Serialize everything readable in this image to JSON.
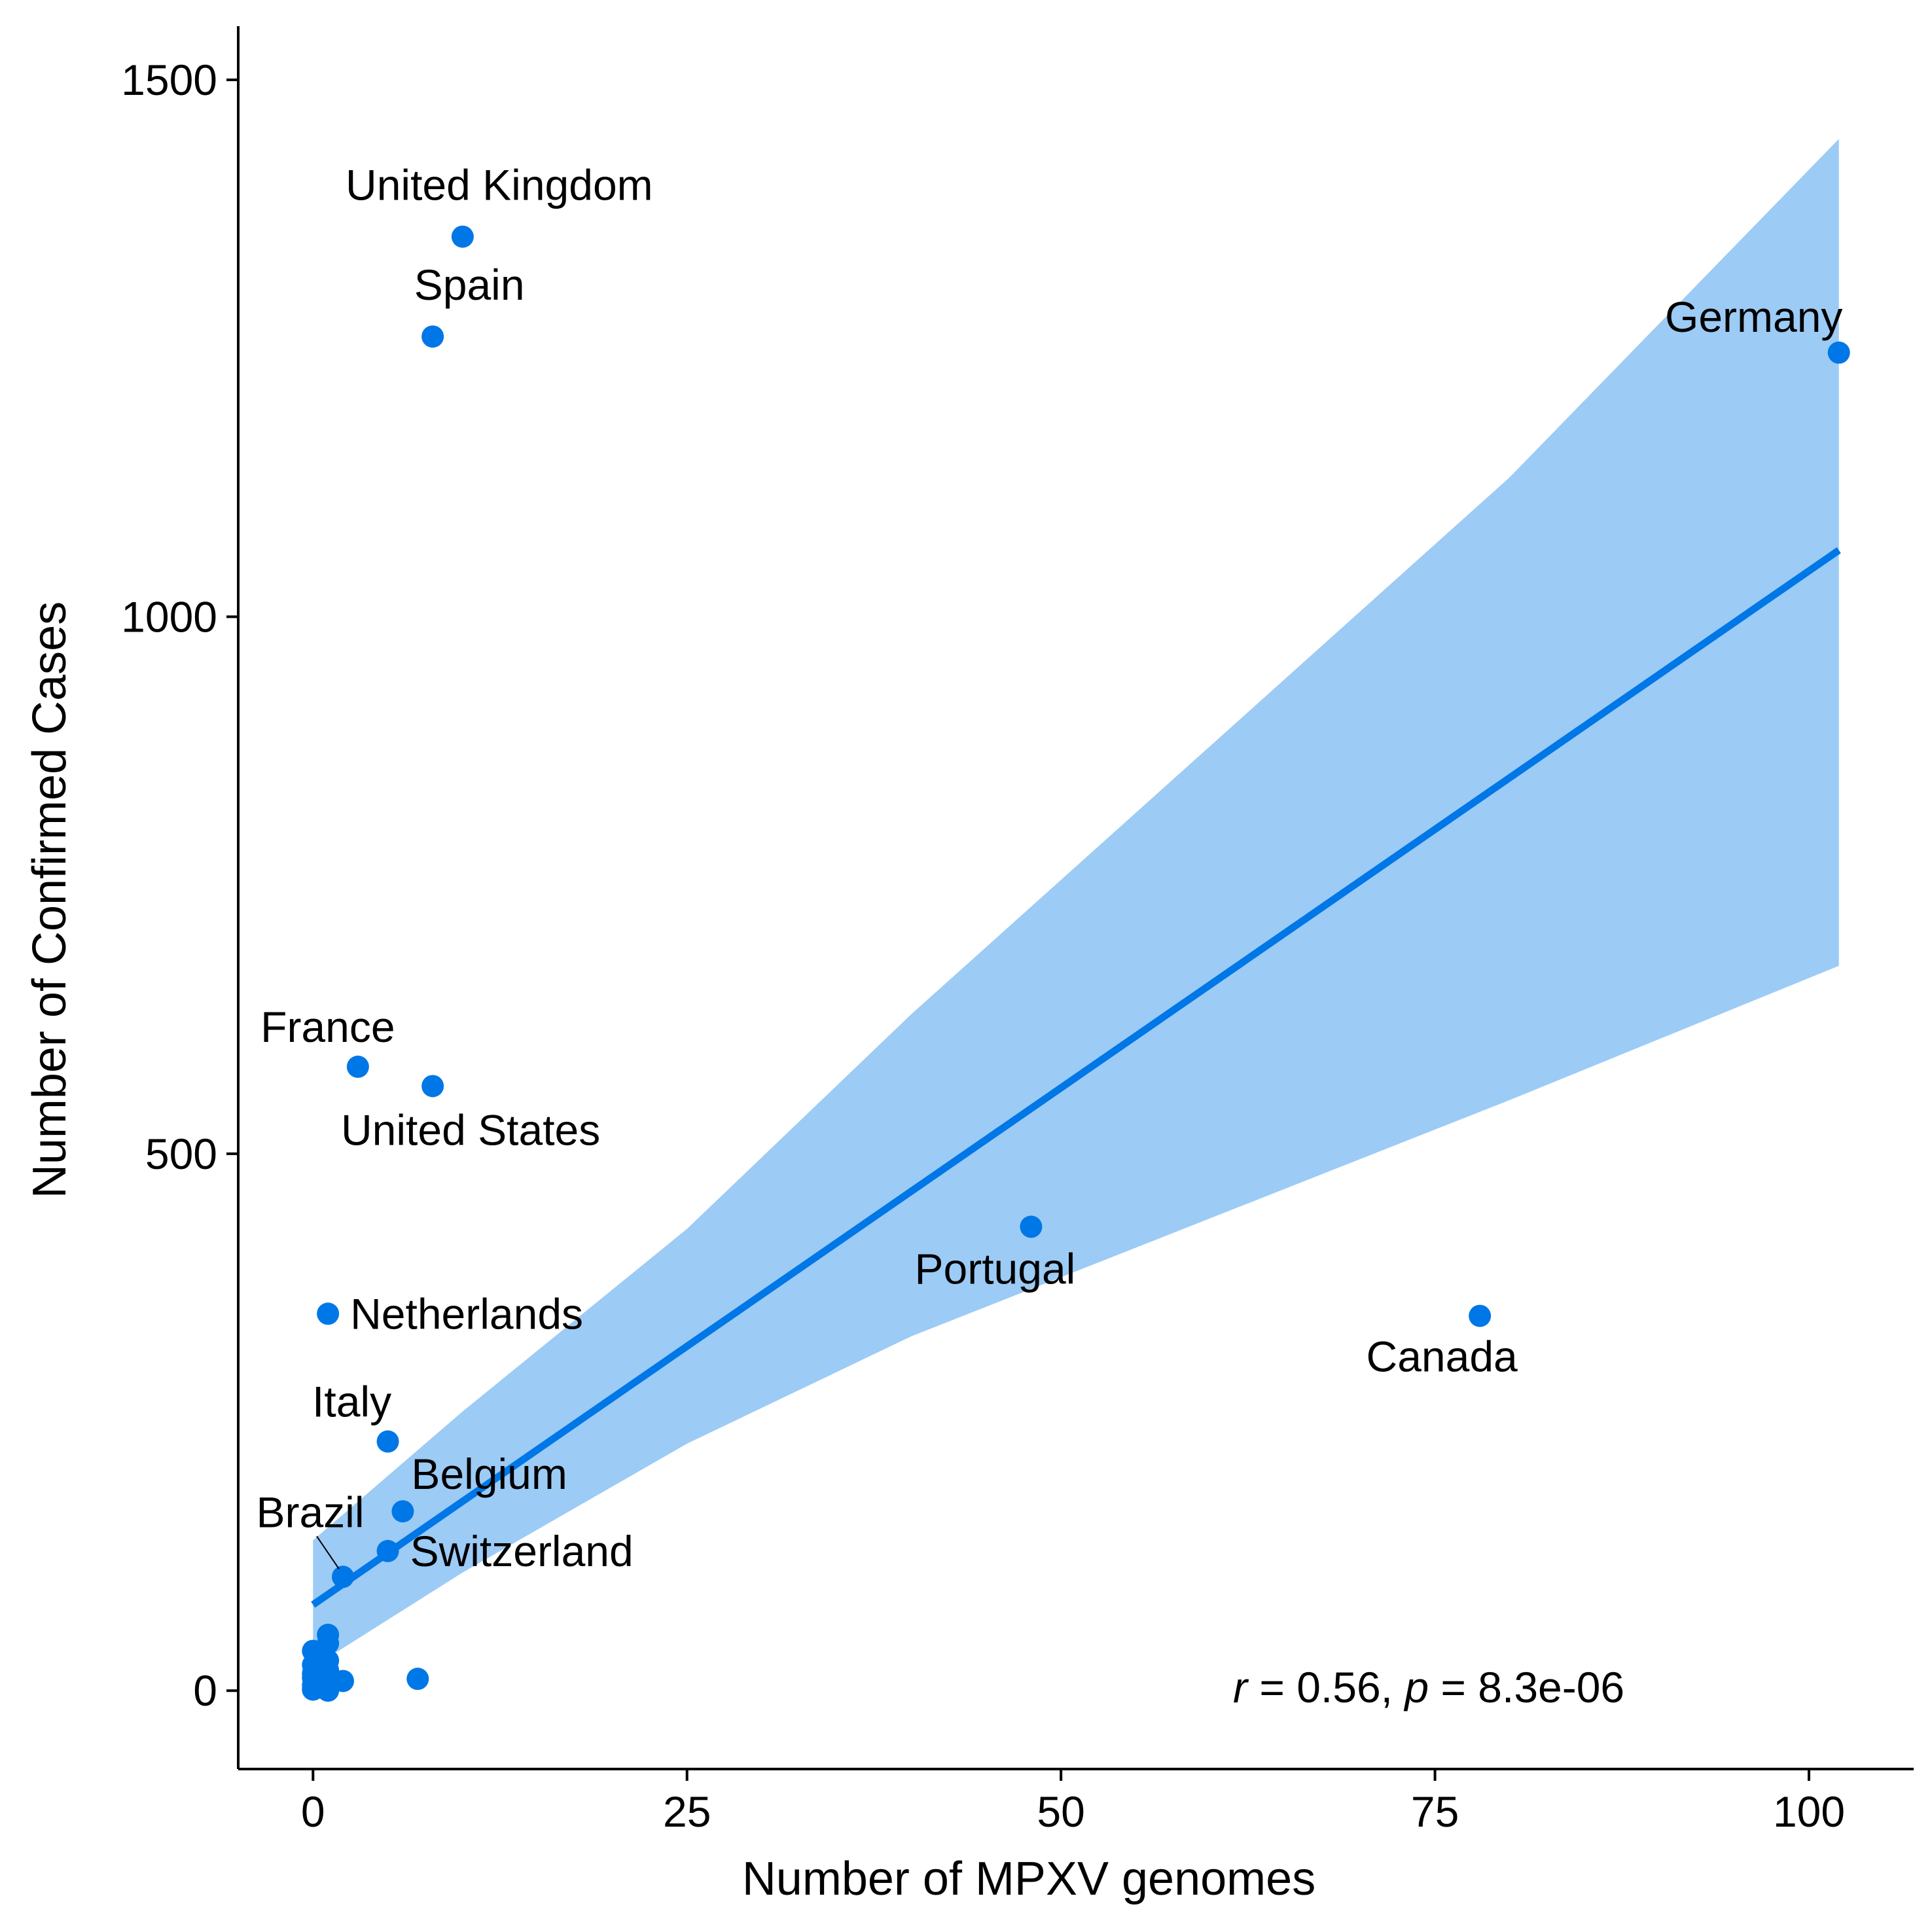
{
  "chart_data": {
    "type": "scatter",
    "xlabel": "Number of MPXV genomes",
    "ylabel": "Number of Confirmed Cases",
    "xlim": [
      -5,
      107
    ],
    "ylim": [
      -73,
      1550
    ],
    "x_ticks": [
      {
        "value": 0,
        "label": "0"
      },
      {
        "value": 25,
        "label": "25"
      },
      {
        "value": 50,
        "label": "50"
      },
      {
        "value": 75,
        "label": "75"
      },
      {
        "value": 100,
        "label": "100"
      }
    ],
    "y_ticks": [
      {
        "value": 0,
        "label": "0"
      },
      {
        "value": 500,
        "label": "500"
      },
      {
        "value": 1000,
        "label": "1000"
      },
      {
        "value": 1500,
        "label": "1500"
      }
    ],
    "grid": false,
    "legend": "none",
    "colors": {
      "points": "#0077e6",
      "line": "#0077e6",
      "band": "#9ccbf5"
    },
    "points": [
      {
        "x": 10,
        "y": 1354,
        "label": "United Kingdom"
      },
      {
        "x": 8,
        "y": 1261,
        "label": "Spain"
      },
      {
        "x": 102,
        "y": 1246,
        "label": "Germany"
      },
      {
        "x": 3,
        "y": 581,
        "label": "France"
      },
      {
        "x": 8,
        "y": 563,
        "label": "United States"
      },
      {
        "x": 48,
        "y": 432,
        "label": "Portugal"
      },
      {
        "x": 1,
        "y": 351,
        "label": "Netherlands"
      },
      {
        "x": 78,
        "y": 349,
        "label": "Canada"
      },
      {
        "x": 5,
        "y": 232,
        "label": "Italy"
      },
      {
        "x": 6,
        "y": 167,
        "label": "Belgium"
      },
      {
        "x": 5,
        "y": 130,
        "label": "Switzerland"
      },
      {
        "x": 2,
        "y": 106,
        "label": "Brazil"
      },
      {
        "x": 1,
        "y": 52
      },
      {
        "x": 1,
        "y": 44
      },
      {
        "x": 0,
        "y": 37
      },
      {
        "x": 1,
        "y": 28
      },
      {
        "x": 0,
        "y": 24
      },
      {
        "x": 1,
        "y": 19
      },
      {
        "x": 0,
        "y": 16
      },
      {
        "x": 0,
        "y": 12
      },
      {
        "x": 2,
        "y": 9
      },
      {
        "x": 7,
        "y": 11
      },
      {
        "x": 1,
        "y": 7
      },
      {
        "x": 0,
        "y": 5
      },
      {
        "x": 0,
        "y": 1
      },
      {
        "x": 1,
        "y": 0
      }
    ],
    "regression": {
      "x0": 0,
      "y0": 80,
      "x1": 102,
      "y1": 1062,
      "band_upper": [
        [
          0,
          140
        ],
        [
          10,
          260
        ],
        [
          25,
          430
        ],
        [
          40,
          630
        ],
        [
          60,
          880
        ],
        [
          80,
          1130
        ],
        [
          102,
          1445
        ]
      ],
      "band_lower": [
        [
          0,
          22
        ],
        [
          10,
          110
        ],
        [
          25,
          230
        ],
        [
          40,
          330
        ],
        [
          60,
          440
        ],
        [
          80,
          550
        ],
        [
          102,
          675
        ]
      ]
    },
    "annotation": {
      "r_symbol": "r",
      "r_text": " = 0.56, ",
      "p_symbol": "p",
      "p_text": " = 8.3e-06"
    }
  }
}
